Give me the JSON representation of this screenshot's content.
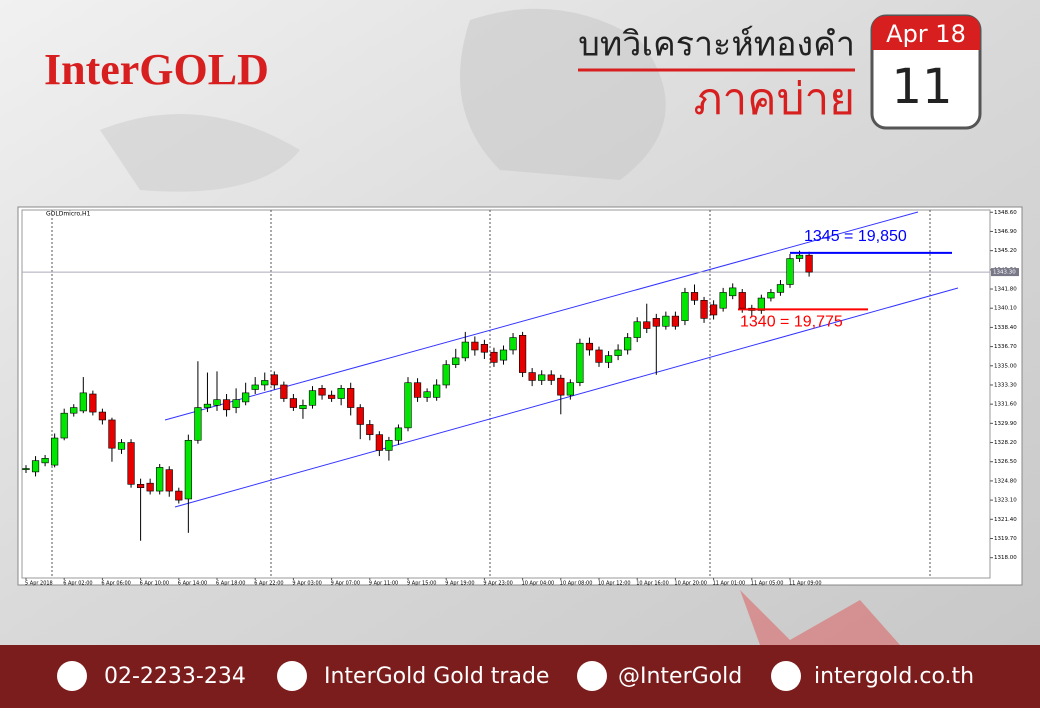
{
  "header": {
    "brand": "InterGOLD",
    "title": "บทวิเคราะห์ทองคำ",
    "subtitle": "ภาคบ่าย",
    "month": "Apr 18",
    "day": "11"
  },
  "footer": {
    "phone": "02-2233-234",
    "facebook": "InterGold Gold trade",
    "line": "@InterGold",
    "website": "intergold.co.th"
  },
  "chart_data": {
    "type": "candlestick",
    "title": "GOLDmicro,H1",
    "categories": [
      "5 Apr 2018",
      null,
      null,
      null,
      "6 Apr 02:00",
      null,
      null,
      null,
      "6 Apr 06:00",
      null,
      null,
      null,
      "6 Apr 10:00",
      null,
      null,
      null,
      "6 Apr 14:00",
      null,
      null,
      null,
      "6 Apr 18:00",
      null,
      null,
      null,
      "6 Apr 22:00",
      null,
      null,
      null,
      "9 Apr 03:00",
      null,
      null,
      null,
      "9 Apr 07:00",
      null,
      null,
      null,
      "9 Apr 11:00",
      null,
      null,
      null,
      "9 Apr 15:00",
      null,
      null,
      null,
      "9 Apr 19:00",
      null,
      null,
      null,
      "9 Apr 23:00",
      null,
      null,
      null,
      "10 Apr 04:00",
      null,
      null,
      null,
      "10 Apr 08:00",
      null,
      null,
      null,
      "10 Apr 12:00",
      null,
      null,
      null,
      "10 Apr 16:00",
      null,
      null,
      null,
      "10 Apr 20:00",
      null,
      null,
      null,
      "11 Apr 01:00",
      null,
      null,
      null,
      "11 Apr 05:00",
      null,
      null,
      null,
      "11 Apr 09:00",
      null,
      null
    ],
    "open": [
      1325.8,
      1325.6,
      1326.4,
      1326.2,
      1328.6,
      1330.8,
      1331.0,
      1332.5,
      1330.9,
      1330.2,
      1327.6,
      1328.2,
      1324.5,
      1324.6,
      1323.9,
      1325.8,
      1323.9,
      1323.2,
      1328.4,
      1331.3,
      1331.5,
      1332.0,
      1331.3,
      1331.8,
      1332.9,
      1333.3,
      1334.2,
      1333.3,
      1332.1,
      1331.2,
      1331.5,
      1333.0,
      1332.4,
      1332.1,
      1333.0,
      1331.3,
      1329.8,
      1328.9,
      1327.5,
      1328.4,
      1329.5,
      1333.5,
      1332.2,
      1332.2,
      1333.3,
      1335.1,
      1335.7,
      1337.1,
      1336.9,
      1336.2,
      1335.5,
      1336.4,
      1337.7,
      1334.4,
      1333.7,
      1334.2,
      1333.9,
      1332.4,
      1333.5,
      1337.0,
      1336.4,
      1335.3,
      1335.9,
      1336.4,
      1337.5,
      1338.9,
      1339.2,
      1338.5,
      1339.4,
      1339.0,
      1341.5,
      1340.8,
      1340.4,
      1340.1,
      1341.2,
      1341.5,
      1340.1,
      1339.9,
      1341.0,
      1341.5,
      1342.2,
      1344.5,
      1344.8
    ],
    "high": [
      1326.2,
      1327.0,
      1327.1,
      1329.0,
      1331.2,
      1331.6,
      1334.0,
      1332.8,
      1331.2,
      1330.4,
      1328.5,
      1328.5,
      1325.0,
      1325.0,
      1326.3,
      1326.1,
      1324.2,
      1328.9,
      1335.4,
      1334.4,
      1334.5,
      1332.5,
      1333.0,
      1333.5,
      1334.0,
      1334.4,
      1334.5,
      1333.6,
      1332.5,
      1332.0,
      1333.2,
      1333.3,
      1332.8,
      1333.3,
      1333.5,
      1331.6,
      1330.2,
      1329.2,
      1328.7,
      1329.8,
      1334.0,
      1333.9,
      1333.0,
      1333.8,
      1335.5,
      1336.5,
      1338.0,
      1337.6,
      1337.3,
      1336.6,
      1336.8,
      1337.9,
      1338.0,
      1334.8,
      1334.6,
      1334.6,
      1334.2,
      1333.8,
      1337.4,
      1337.5,
      1336.7,
      1336.3,
      1336.9,
      1337.9,
      1339.3,
      1340.5,
      1339.6,
      1339.8,
      1339.8,
      1341.9,
      1342.2,
      1341.1,
      1340.8,
      1341.9,
      1342.3,
      1341.8,
      1340.4,
      1341.3,
      1341.8,
      1342.6,
      1344.9,
      1345.2,
      1345.1
    ],
    "low": [
      1325.5,
      1325.2,
      1326.1,
      1326.0,
      1328.4,
      1330.5,
      1330.8,
      1330.6,
      1329.8,
      1326.5,
      1327.2,
      1324.2,
      1319.5,
      1323.6,
      1323.6,
      1323.4,
      1322.8,
      1320.2,
      1328.1,
      1330.9,
      1331.0,
      1330.5,
      1330.8,
      1331.5,
      1332.5,
      1332.8,
      1332.9,
      1331.8,
      1331.0,
      1330.3,
      1331.2,
      1332.0,
      1331.8,
      1331.5,
      1330.6,
      1328.5,
      1328.4,
      1327.0,
      1326.6,
      1328.0,
      1329.2,
      1331.8,
      1331.8,
      1331.9,
      1333.0,
      1334.8,
      1335.4,
      1335.9,
      1335.6,
      1334.9,
      1335.1,
      1336.0,
      1334.0,
      1333.2,
      1333.3,
      1333.3,
      1330.7,
      1332.0,
      1333.2,
      1335.9,
      1334.9,
      1334.8,
      1335.5,
      1336.0,
      1337.1,
      1337.9,
      1334.2,
      1338.2,
      1338.2,
      1338.6,
      1340.4,
      1338.8,
      1339.1,
      1339.8,
      1340.9,
      1339.7,
      1339.4,
      1339.6,
      1340.7,
      1341.2,
      1341.9,
      1344.2,
      1342.9
    ],
    "close": [
      1325.9,
      1326.6,
      1326.8,
      1328.6,
      1330.8,
      1331.3,
      1332.6,
      1330.9,
      1330.2,
      1327.7,
      1328.2,
      1324.5,
      1324.2,
      1323.9,
      1326.0,
      1323.9,
      1323.1,
      1328.4,
      1331.3,
      1331.6,
      1332.0,
      1331.1,
      1332.0,
      1332.6,
      1333.3,
      1333.7,
      1333.3,
      1332.1,
      1331.3,
      1331.5,
      1332.8,
      1332.4,
      1332.1,
      1333.0,
      1331.3,
      1329.8,
      1328.9,
      1327.5,
      1328.4,
      1329.5,
      1333.5,
      1332.2,
      1332.7,
      1333.3,
      1335.1,
      1335.7,
      1337.1,
      1336.4,
      1336.2,
      1335.3,
      1336.4,
      1337.5,
      1334.4,
      1333.7,
      1334.2,
      1333.7,
      1332.4,
      1333.5,
      1337.0,
      1336.4,
      1335.3,
      1335.9,
      1336.4,
      1337.5,
      1338.9,
      1338.3,
      1338.5,
      1339.4,
      1338.5,
      1341.5,
      1340.8,
      1339.2,
      1339.5,
      1341.5,
      1341.9,
      1340.1,
      1339.9,
      1341.0,
      1341.5,
      1342.2,
      1344.5,
      1344.8,
      1343.3
    ],
    "up_color": "#00e600",
    "down_color": "#e60000",
    "ylim": [
      1316.2,
      1348.8
    ],
    "yticks": [
      {
        "value": 1348.6,
        "label": "1348.60"
      },
      {
        "value": 1346.9,
        "label": "1346.90"
      },
      {
        "value": 1345.2,
        "label": "1345.20"
      },
      {
        "value": 1343.5,
        "label": "1343.50"
      },
      {
        "value": 1341.8,
        "label": "1341.80"
      },
      {
        "value": 1340.1,
        "label": "1340.10"
      },
      {
        "value": 1338.4,
        "label": "1338.40"
      },
      {
        "value": 1336.7,
        "label": "1336.70"
      },
      {
        "value": 1335.0,
        "label": "1335.00"
      },
      {
        "value": 1333.3,
        "label": "1333.30"
      },
      {
        "value": 1331.6,
        "label": "1331.60"
      },
      {
        "value": 1329.9,
        "label": "1329.90"
      },
      {
        "value": 1328.2,
        "label": "1328.20"
      },
      {
        "value": 1326.5,
        "label": "1326.50"
      },
      {
        "value": 1324.8,
        "label": "1324.80"
      },
      {
        "value": 1323.1,
        "label": "1323.10"
      },
      {
        "value": 1321.4,
        "label": "1321.40"
      },
      {
        "value": 1319.7,
        "label": "1319.70"
      },
      {
        "value": 1318.0,
        "label": "1318.00"
      }
    ],
    "price_line": {
      "value": 1343.3,
      "label": "1343.30"
    },
    "levels": [
      {
        "value": 1345,
        "label": "1345 = 19,850",
        "color": "#0000ff"
      },
      {
        "value": 1340,
        "label": "1340 = 19,775",
        "color": "#ff0000"
      }
    ]
  }
}
